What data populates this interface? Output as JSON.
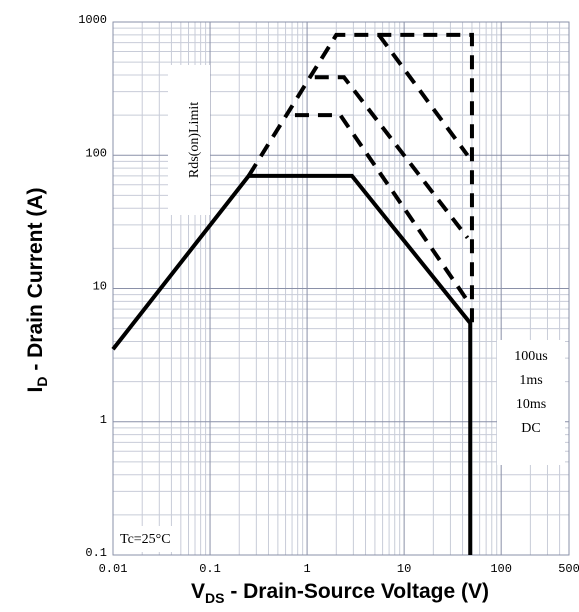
{
  "chart_data": {
    "type": "line",
    "xscale": "log",
    "yscale": "log",
    "xlim": [
      0.01,
      500
    ],
    "ylim": [
      0.1,
      1000
    ],
    "xticks": [
      0.01,
      0.1,
      1,
      10,
      100,
      500
    ],
    "yticks": [
      0.1,
      1,
      10,
      100,
      1000
    ],
    "grid": true,
    "xlabel": {
      "main": "V",
      "sub": "DS",
      "rest": " - Drain-Source Voltage (V)"
    },
    "ylabel": {
      "main": "I",
      "sub": "D",
      "rest": " - Drain Current (A)"
    },
    "annotations": [
      "Rds(on)Limit",
      "Tc=25°C"
    ],
    "series": [
      {
        "name": "100us",
        "color": "#000000",
        "dashed": true,
        "x": [
          5.5,
          45
        ],
        "values": [
          800,
          100
        ]
      },
      {
        "name": "1ms",
        "color": "#000000",
        "dashed": true,
        "x": [
          1.2,
          2.4,
          45
        ],
        "values": [
          385,
          385,
          24
        ]
      },
      {
        "name": "10ms",
        "color": "#000000",
        "dashed": true,
        "x": [
          0.75,
          2.2,
          45
        ],
        "values": [
          200,
          200,
          8.1
        ]
      },
      {
        "name": "DC",
        "color": "#000000",
        "dashed": false,
        "x": [
          0.01,
          0.25,
          2.9,
          48,
          48
        ],
        "values": [
          3.5,
          70,
          70,
          5.5,
          0.1
        ]
      }
    ],
    "limit_line": {
      "color": "#000000",
      "dashed": true,
      "x": [
        0.25,
        2,
        50,
        50
      ],
      "values": [
        70,
        800,
        800,
        5.5
      ]
    }
  }
}
